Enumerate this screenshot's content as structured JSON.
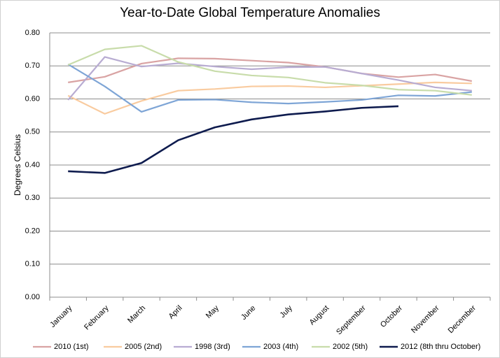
{
  "chart_data": {
    "type": "line",
    "title": "Year-to-Date Global Temperature Anomalies",
    "y_label": "Degrees Celsius",
    "categories": [
      "January",
      "February",
      "March",
      "April",
      "May",
      "June",
      "July",
      "August",
      "September",
      "October",
      "November",
      "December"
    ],
    "ylim": [
      0,
      0.8
    ],
    "yticks": [
      {
        "value": 0,
        "label": "0.00"
      },
      {
        "value": 0.1,
        "label": "0.10"
      },
      {
        "value": 0.2,
        "label": "0.20"
      },
      {
        "value": 0.3,
        "label": "0.30"
      },
      {
        "value": 0.4,
        "label": "0.40"
      },
      {
        "value": 0.5,
        "label": "0.50"
      },
      {
        "value": 0.6,
        "label": "0.60"
      },
      {
        "value": 0.7,
        "label": "0.70"
      },
      {
        "value": 0.8,
        "label": "0.80"
      }
    ],
    "grid": true,
    "legend": "bottom",
    "series": [
      {
        "name": "2010 (1st)",
        "color": "#d9a3a3",
        "width": 2.2,
        "values": [
          0.65,
          0.667,
          0.707,
          0.723,
          0.722,
          0.716,
          0.71,
          0.697,
          0.677,
          0.666,
          0.674,
          0.654
        ]
      },
      {
        "name": "2005 (2nd)",
        "color": "#f9cb9f",
        "width": 2.2,
        "values": [
          0.61,
          0.555,
          0.594,
          0.625,
          0.63,
          0.638,
          0.639,
          0.635,
          0.64,
          0.645,
          0.65,
          0.647
        ]
      },
      {
        "name": "1998 (3rd)",
        "color": "#b8acd2",
        "width": 2.2,
        "values": [
          0.597,
          0.727,
          0.698,
          0.708,
          0.698,
          0.69,
          0.696,
          0.697,
          0.677,
          0.657,
          0.635,
          0.625
        ]
      },
      {
        "name": "2003 (4th)",
        "color": "#7ea5d6",
        "width": 2.2,
        "values": [
          0.705,
          0.638,
          0.561,
          0.597,
          0.598,
          0.59,
          0.586,
          0.591,
          0.597,
          0.611,
          0.609,
          0.621
        ]
      },
      {
        "name": "2002 (5th)",
        "color": "#c8dcaa",
        "width": 2.2,
        "values": [
          0.703,
          0.75,
          0.761,
          0.712,
          0.684,
          0.671,
          0.665,
          0.649,
          0.641,
          0.628,
          0.625,
          0.612
        ]
      },
      {
        "name": "2012 (8th thru October)",
        "color": "#0e1b4e",
        "width": 2.6,
        "values": [
          0.381,
          0.376,
          0.406,
          0.475,
          0.514,
          0.538,
          0.553,
          0.562,
          0.573,
          0.578,
          null,
          null
        ]
      }
    ]
  }
}
